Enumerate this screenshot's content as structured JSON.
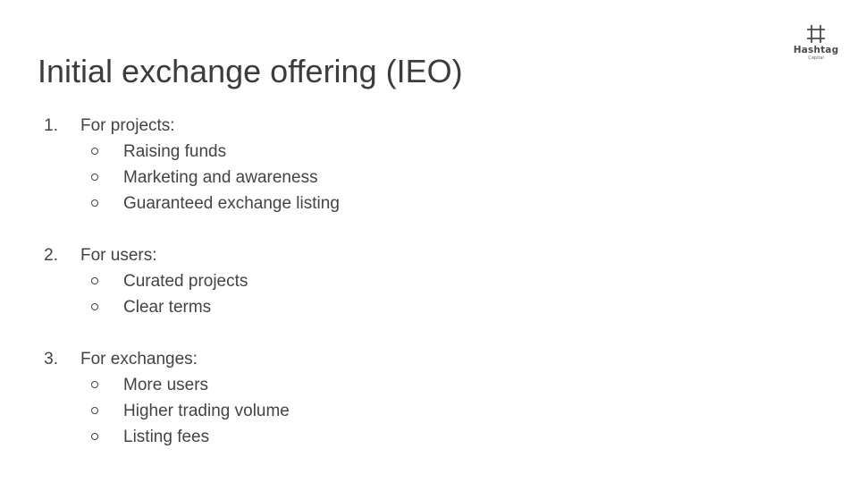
{
  "slide": {
    "title": "Initial exchange offering (IEO)"
  },
  "logo": {
    "name": "Hashtag",
    "sub": "Capital"
  },
  "list": [
    {
      "number": "1.",
      "label": "For projects:",
      "items": [
        "Raising funds",
        "Marketing and awareness",
        "Guaranteed exchange listing"
      ]
    },
    {
      "number": "2.",
      "label": "For users:",
      "items": [
        "Curated projects",
        "Clear terms"
      ]
    },
    {
      "number": "3.",
      "label": "For exchanges:",
      "items": [
        "More users",
        "Higher trading volume",
        "Listing fees"
      ]
    }
  ],
  "colors": {
    "text": "#434343",
    "background": "#ffffff"
  },
  "icons": {
    "bullet": "hollow-circle",
    "logo": "hashtag-frame-icon"
  }
}
